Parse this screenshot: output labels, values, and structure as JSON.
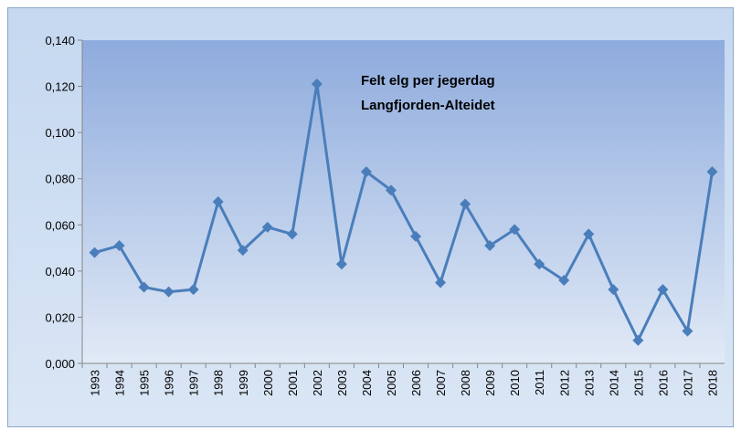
{
  "chart_data": {
    "type": "line",
    "title": "Felt elg per jegerdag",
    "subtitle": "Langfjorden-Alteidet",
    "categories": [
      "1993",
      "1994",
      "1995",
      "1996",
      "1997",
      "1998",
      "1999",
      "2000",
      "2001",
      "2002",
      "2003",
      "2004",
      "2005",
      "2006",
      "2007",
      "2008",
      "2009",
      "2010",
      "2011",
      "2012",
      "2013",
      "2014",
      "2015",
      "2016",
      "2017",
      "2018"
    ],
    "series": [
      {
        "color": "#4a7ebb",
        "values": [
          0.048,
          0.051,
          0.033,
          0.031,
          0.032,
          0.07,
          0.049,
          0.059,
          0.056,
          0.121,
          0.043,
          0.083,
          0.075,
          0.055,
          0.035,
          0.069,
          0.051,
          0.058,
          0.043,
          0.036,
          0.056,
          0.032,
          0.01,
          0.032,
          0.014,
          0.083
        ]
      }
    ],
    "ylim": [
      0,
      0.14
    ],
    "yticks": [
      {
        "value": 0,
        "label": "0,000"
      },
      {
        "value": 0.02,
        "label": "0,020"
      },
      {
        "value": 0.04,
        "label": "0,040"
      },
      {
        "value": 0.06,
        "label": "0,060"
      },
      {
        "value": 0.08,
        "label": "0,080"
      },
      {
        "value": 0.1,
        "label": "0,100"
      },
      {
        "value": 0.12,
        "label": "0,120"
      },
      {
        "value": 0.14,
        "label": "0,140"
      }
    ],
    "grid": false
  }
}
